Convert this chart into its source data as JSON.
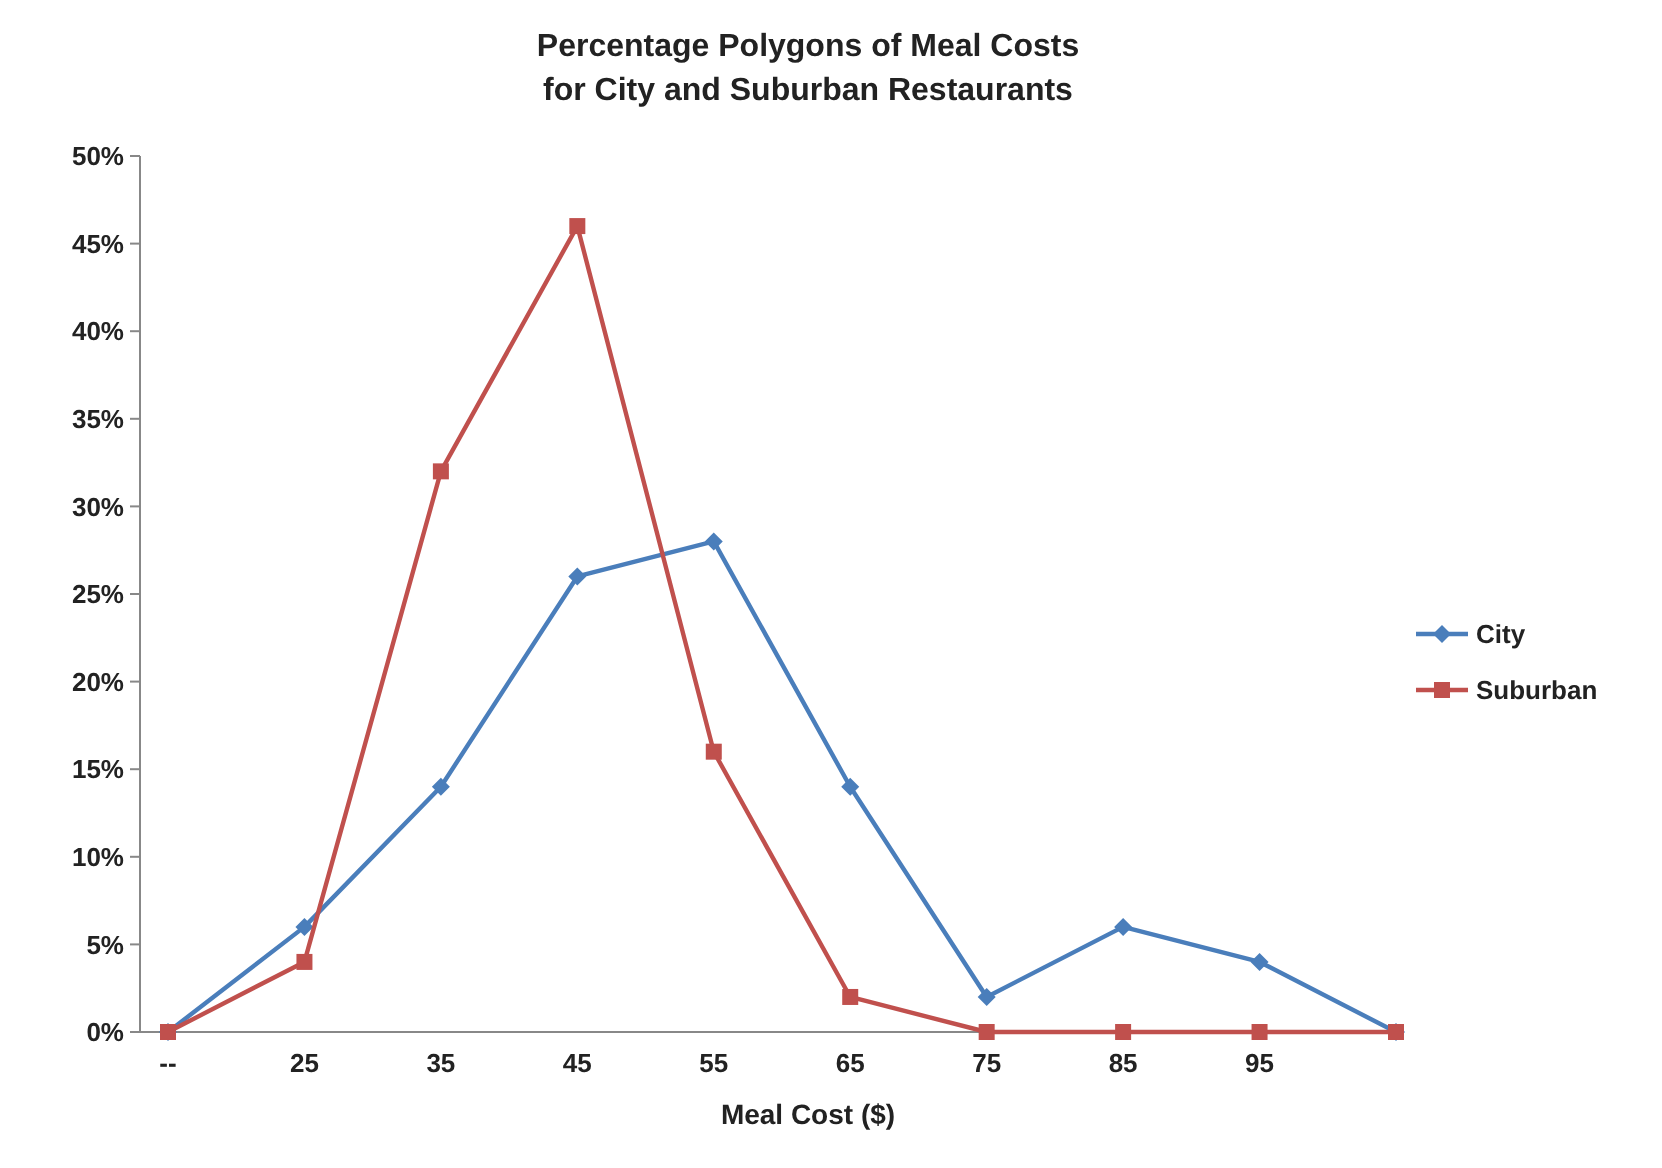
{
  "chart_data": {
    "type": "line",
    "title": "Percentage Polygons of Meal Costs\nfor City and Suburban Restaurants",
    "xlabel": "Meal Cost ($)",
    "categories": [
      "--",
      "25",
      "35",
      "45",
      "55",
      "65",
      "75",
      "85",
      "95",
      null
    ],
    "series": [
      {
        "name": "City",
        "color": "#4a7ebb",
        "marker": "diamond",
        "values": [
          0,
          6,
          14,
          26,
          28,
          14,
          2,
          6,
          4,
          0
        ]
      },
      {
        "name": "Suburban",
        "color": "#c0504d",
        "marker": "square",
        "values": [
          0,
          4,
          32,
          46,
          16,
          2,
          0,
          0,
          0,
          0
        ]
      }
    ],
    "ylim": [
      0,
      50
    ],
    "yticks": [
      {
        "value": 0,
        "label": "0%"
      },
      {
        "value": 5,
        "label": "5%"
      },
      {
        "value": 10,
        "label": "10%"
      },
      {
        "value": 15,
        "label": "15%"
      },
      {
        "value": 20,
        "label": "20%"
      },
      {
        "value": 25,
        "label": "25%"
      },
      {
        "value": 30,
        "label": "30%"
      },
      {
        "value": 35,
        "label": "35%"
      },
      {
        "value": 40,
        "label": "40%"
      },
      {
        "value": 45,
        "label": "45%"
      },
      {
        "value": 50,
        "label": "50%"
      }
    ],
    "legend": "right",
    "grid": false,
    "line_style": "solid"
  }
}
